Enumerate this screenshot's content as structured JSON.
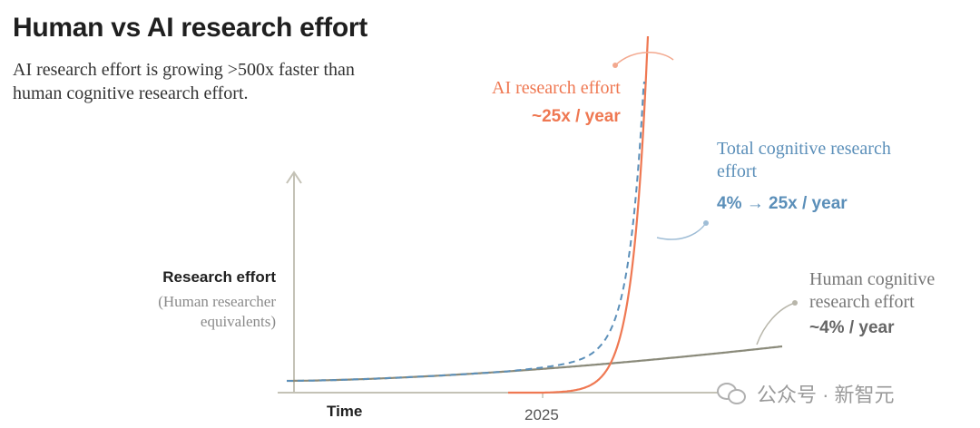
{
  "chart_data": {
    "type": "line",
    "title": "Human vs AI research effort",
    "subtitle": "AI research effort is growing >500x faster than human cognitive research effort.",
    "ylabel": "Research effort",
    "ylabel_sub": "(Human researcher equivalents)",
    "xlabel": "Time",
    "x_ticks": [
      "2025"
    ],
    "grid": false,
    "series": [
      {
        "key": "ai",
        "name": "AI research effort",
        "rate": "~25x / year",
        "color": "#ef7852",
        "style": "solid"
      },
      {
        "key": "total",
        "name": "Total cognitive research effort",
        "rate": "4% → 25x / year",
        "color": "#5b8fb9",
        "style": "dashed"
      },
      {
        "key": "human",
        "name": "Human cognitive research effort",
        "rate": "~4% / year",
        "color": "#8a8a7a",
        "style": "solid"
      }
    ]
  },
  "watermark": {
    "text": "公众号 · 新智元"
  }
}
